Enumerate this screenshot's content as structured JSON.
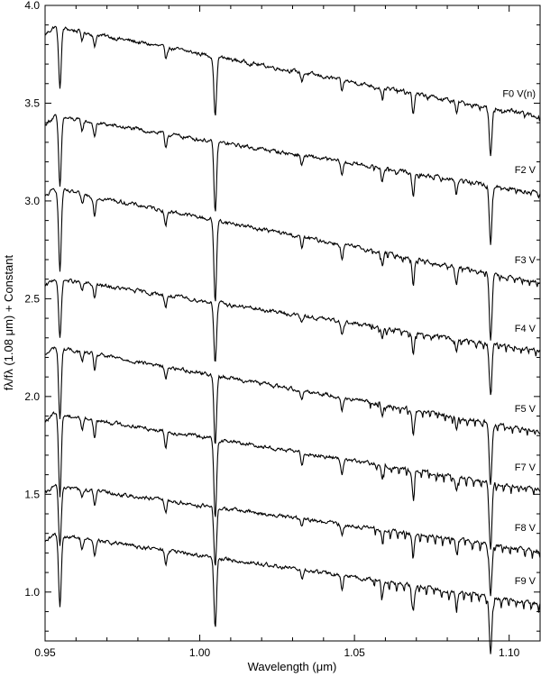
{
  "chart_data": {
    "type": "line",
    "title": "",
    "xlabel": "Wavelength (μm)",
    "ylabel": "fλ/fλ (1.08 μm) + Constant",
    "xlim": [
      0.95,
      1.11
    ],
    "ylim": [
      0.75,
      4.0
    ],
    "xticks": [
      0.95,
      1.0,
      1.05,
      1.1
    ],
    "xtick_labels": [
      "0.95",
      "1.00",
      "1.05",
      "1.10"
    ],
    "yticks": [
      1.0,
      1.5,
      2.0,
      2.5,
      3.0,
      3.5,
      4.0
    ],
    "ytick_labels": [
      "1.0",
      "1.5",
      "2.0",
      "2.5",
      "3.0",
      "3.5",
      "4.0"
    ],
    "grid": false,
    "legend": "none (labels placed at right end of each spectrum)",
    "line_color": "#000000",
    "absorption_features": [
      {
        "x": 0.9548,
        "depth": 0.36
      },
      {
        "x": 0.962,
        "depth": 0.05
      },
      {
        "x": 0.966,
        "depth": 0.08
      },
      {
        "x": 0.989,
        "depth": 0.07
      },
      {
        "x": 1.005,
        "depth": 0.36
      },
      {
        "x": 1.033,
        "depth": 0.05
      },
      {
        "x": 1.046,
        "depth": 0.07
      },
      {
        "x": 1.059,
        "depth": 0.06
      },
      {
        "x": 1.069,
        "depth": 0.12
      },
      {
        "x": 1.083,
        "depth": 0.07
      },
      {
        "x": 1.094,
        "depth": 0.3
      }
    ],
    "series": [
      {
        "name": "F0 V(n)",
        "start": 3.9,
        "end": 3.43
      },
      {
        "name": "F2 V",
        "start": 3.44,
        "end": 3.04
      },
      {
        "name": "F3 V",
        "start": 3.07,
        "end": 2.58
      },
      {
        "name": "F4 V",
        "start": 2.61,
        "end": 2.23
      },
      {
        "name": "F5 V",
        "start": 2.26,
        "end": 1.82
      },
      {
        "name": "F7 V",
        "start": 1.92,
        "end": 1.52
      },
      {
        "name": "F8 V",
        "start": 1.55,
        "end": 1.21
      },
      {
        "name": "F9 V",
        "start": 1.3,
        "end": 0.94
      }
    ]
  }
}
